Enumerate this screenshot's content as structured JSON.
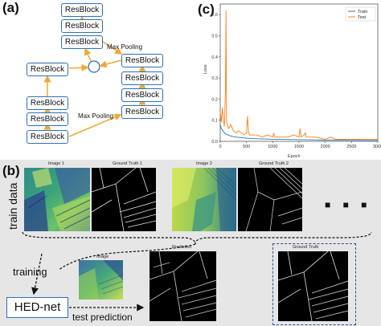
{
  "panel_labels": {
    "a": "(a)",
    "b": "(b)",
    "c": "(c)"
  },
  "panel_a": {
    "block_label": "ResBlock",
    "pool_label_top": "Max Pooling",
    "pool_label_bottom": "Max Pooling"
  },
  "chart_data": {
    "type": "line",
    "title": "",
    "xlabel": "Epoch",
    "ylabel": "Loss",
    "xlim": [
      0,
      3000
    ],
    "ylim": [
      0,
      0.65
    ],
    "x_ticks": [
      0,
      500,
      1000,
      1500,
      2000,
      2500,
      3000
    ],
    "y_ticks": [
      0.0,
      0.1,
      0.2,
      0.3,
      0.4,
      0.5,
      0.6
    ],
    "legend_position": "top-right",
    "series": [
      {
        "name": "Train",
        "color": "#1f77b4",
        "x": [
          0,
          20,
          50,
          80,
          100,
          150,
          200,
          300,
          500,
          700,
          1000,
          1500,
          2000,
          2500,
          3000
        ],
        "y": [
          0.08,
          0.06,
          0.05,
          0.04,
          0.035,
          0.03,
          0.025,
          0.02,
          0.015,
          0.012,
          0.01,
          0.008,
          0.006,
          0.005,
          0.004
        ]
      },
      {
        "name": "Test",
        "color": "#ff7f0e",
        "x": [
          0,
          20,
          40,
          60,
          80,
          100,
          110,
          120,
          140,
          160,
          200,
          250,
          300,
          350,
          400,
          450,
          500,
          520,
          540,
          560,
          600,
          700,
          800,
          900,
          1000,
          1020,
          1040,
          1100,
          1200,
          1300,
          1400,
          1500,
          1520,
          1540,
          1600,
          1620,
          1640,
          1700,
          1800,
          2000,
          2100,
          2200,
          2400,
          2600,
          2800,
          3000
        ],
        "y": [
          0.14,
          0.09,
          0.16,
          0.1,
          0.07,
          0.25,
          0.62,
          0.1,
          0.07,
          0.06,
          0.08,
          0.05,
          0.04,
          0.05,
          0.04,
          0.03,
          0.04,
          0.12,
          0.04,
          0.03,
          0.03,
          0.03,
          0.02,
          0.03,
          0.02,
          0.04,
          0.02,
          0.02,
          0.02,
          0.02,
          0.03,
          0.02,
          0.06,
          0.02,
          0.03,
          0.04,
          0.02,
          0.02,
          0.02,
          0.01,
          0.02,
          0.01,
          0.01,
          0.01,
          0.01,
          0.01
        ]
      }
    ]
  },
  "panel_b": {
    "side_label": "train data",
    "titles": {
      "image1": "Image 1",
      "gt1": "Ground Truth 1",
      "image2": "Image 2",
      "gt2": "Ground Truth 2",
      "image": "Image",
      "prediction": "Prediction",
      "gt": "Ground Truth"
    },
    "training_label": "training",
    "net_label": "HED-net",
    "test_label": "test prediction",
    "ellipsis": "■ ■ ■"
  }
}
